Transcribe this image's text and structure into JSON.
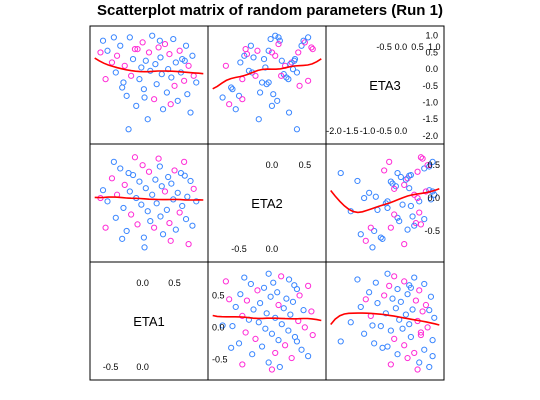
{
  "chart_data": {
    "type": "scatter",
    "title": "Scatterplot matrix of random parameters (Run 1)",
    "variables": [
      "ETA1",
      "ETA2",
      "ETA3"
    ],
    "diagonal_order_bottom_to_top": [
      "ETA1",
      "ETA2",
      "ETA3"
    ],
    "point_colors": {
      "group_a": "#3a86ff",
      "group_b": "#ff2bd6"
    },
    "smooth_color": "#ff0000",
    "axes": {
      "ETA1": {
        "range": [
          -0.75,
          0.95
        ],
        "ticks": [
          -0.5,
          0.0,
          0.5
        ],
        "tick_labels": [
          "-0.5",
          "0.0",
          "0.5"
        ]
      },
      "ETA2": {
        "range": [
          -0.9,
          0.75
        ],
        "ticks": [
          -0.5,
          0.0,
          0.5
        ],
        "tick_labels": [
          "-0.5",
          "0.0",
          "0.5"
        ]
      },
      "ETA3": {
        "range": [
          -2.1,
          1.15
        ],
        "ticks": [
          -2.0,
          -1.5,
          -1.0,
          -0.5,
          0.0,
          0.5,
          1.0
        ],
        "tick_labels": [
          "-2.0",
          "-1.5",
          "-1.0",
          "-0.5",
          "0.0",
          "0.5",
          "1.0"
        ]
      }
    },
    "points": [
      {
        "ETA1": -0.62,
        "ETA2": 0.12,
        "ETA3": 0.85,
        "g": "a"
      },
      {
        "ETA1": -0.55,
        "ETA2": -0.05,
        "ETA3": 0.55,
        "g": "a"
      },
      {
        "ETA1": -0.48,
        "ETA2": 0.3,
        "ETA3": 0.2,
        "g": "b"
      },
      {
        "ETA1": -0.42,
        "ETA2": -0.3,
        "ETA3": -0.1,
        "g": "a"
      },
      {
        "ETA1": -0.4,
        "ETA2": 0.05,
        "ETA3": 0.4,
        "g": "b"
      },
      {
        "ETA1": -0.35,
        "ETA2": 0.45,
        "ETA3": 0.7,
        "g": "a"
      },
      {
        "ETA1": -0.3,
        "ETA2": -0.15,
        "ETA3": -0.4,
        "g": "a"
      },
      {
        "ETA1": -0.28,
        "ETA2": 0.2,
        "ETA3": 0.1,
        "g": "b"
      },
      {
        "ETA1": -0.25,
        "ETA2": -0.5,
        "ETA3": -0.8,
        "g": "a"
      },
      {
        "ETA1": -0.2,
        "ETA2": 0.1,
        "ETA3": 0.95,
        "g": "a"
      },
      {
        "ETA1": -0.18,
        "ETA2": -0.25,
        "ETA3": -0.2,
        "g": "b"
      },
      {
        "ETA1": -0.15,
        "ETA2": 0.35,
        "ETA3": 0.3,
        "g": "a"
      },
      {
        "ETA1": -0.1,
        "ETA2": 0.0,
        "ETA3": -1.1,
        "g": "a"
      },
      {
        "ETA1": -0.08,
        "ETA2": -0.4,
        "ETA3": 0.6,
        "g": "b"
      },
      {
        "ETA1": -0.05,
        "ETA2": 0.25,
        "ETA3": -0.3,
        "g": "a"
      },
      {
        "ETA1": -0.02,
        "ETA2": -0.1,
        "ETA3": 0.05,
        "g": "a"
      },
      {
        "ETA1": 0.0,
        "ETA2": 0.5,
        "ETA3": 0.8,
        "g": "b"
      },
      {
        "ETA1": 0.02,
        "ETA2": -0.6,
        "ETA3": -0.6,
        "g": "a"
      },
      {
        "ETA1": 0.05,
        "ETA2": 0.15,
        "ETA3": 0.25,
        "g": "a"
      },
      {
        "ETA1": 0.08,
        "ETA2": -0.2,
        "ETA3": -1.5,
        "g": "a"
      },
      {
        "ETA1": 0.1,
        "ETA2": 0.4,
        "ETA3": 0.5,
        "g": "b"
      },
      {
        "ETA1": 0.12,
        "ETA2": -0.35,
        "ETA3": -0.05,
        "g": "a"
      },
      {
        "ETA1": 0.15,
        "ETA2": 0.05,
        "ETA3": 1.0,
        "g": "a"
      },
      {
        "ETA1": 0.18,
        "ETA2": -0.45,
        "ETA3": -0.9,
        "g": "b"
      },
      {
        "ETA1": 0.2,
        "ETA2": 0.28,
        "ETA3": 0.15,
        "g": "a"
      },
      {
        "ETA1": 0.22,
        "ETA2": -0.08,
        "ETA3": -0.45,
        "g": "a"
      },
      {
        "ETA1": 0.25,
        "ETA2": 0.6,
        "ETA3": 0.65,
        "g": "b"
      },
      {
        "ETA1": 0.28,
        "ETA2": -0.28,
        "ETA3": 0.35,
        "g": "a"
      },
      {
        "ETA1": 0.3,
        "ETA2": 0.18,
        "ETA3": -0.15,
        "g": "a"
      },
      {
        "ETA1": 0.32,
        "ETA2": -0.55,
        "ETA3": -1.2,
        "g": "a"
      },
      {
        "ETA1": 0.35,
        "ETA2": 0.1,
        "ETA3": 0.75,
        "g": "b"
      },
      {
        "ETA1": 0.38,
        "ETA2": -0.18,
        "ETA3": -0.7,
        "g": "a"
      },
      {
        "ETA1": 0.4,
        "ETA2": 0.32,
        "ETA3": 0.0,
        "g": "a"
      },
      {
        "ETA1": 0.42,
        "ETA2": -0.38,
        "ETA3": 0.45,
        "g": "b"
      },
      {
        "ETA1": 0.45,
        "ETA2": 0.22,
        "ETA3": -0.25,
        "g": "a"
      },
      {
        "ETA1": 0.48,
        "ETA2": -0.02,
        "ETA3": 0.9,
        "g": "a"
      },
      {
        "ETA1": 0.5,
        "ETA2": 0.42,
        "ETA3": -0.5,
        "g": "b"
      },
      {
        "ETA1": 0.52,
        "ETA2": -0.48,
        "ETA3": 0.2,
        "g": "a"
      },
      {
        "ETA1": 0.55,
        "ETA2": 0.08,
        "ETA3": -0.95,
        "g": "a"
      },
      {
        "ETA1": 0.58,
        "ETA2": -0.22,
        "ETA3": 0.55,
        "g": "b"
      },
      {
        "ETA1": 0.6,
        "ETA2": 0.38,
        "ETA3": -0.1,
        "g": "a"
      },
      {
        "ETA1": 0.62,
        "ETA2": -0.12,
        "ETA3": 0.3,
        "g": "a"
      },
      {
        "ETA1": 0.65,
        "ETA2": 0.55,
        "ETA3": -0.35,
        "g": "b"
      },
      {
        "ETA1": 0.68,
        "ETA2": -0.32,
        "ETA3": 0.7,
        "g": "a"
      },
      {
        "ETA1": 0.7,
        "ETA2": 0.02,
        "ETA3": -0.75,
        "g": "a"
      },
      {
        "ETA1": 0.72,
        "ETA2": -0.7,
        "ETA3": 0.1,
        "g": "b"
      },
      {
        "ETA1": 0.75,
        "ETA2": 0.26,
        "ETA3": -1.3,
        "g": "a"
      },
      {
        "ETA1": 0.78,
        "ETA2": -0.42,
        "ETA3": 0.4,
        "g": "a"
      },
      {
        "ETA1": 0.8,
        "ETA2": 0.14,
        "ETA3": -0.2,
        "g": "b"
      },
      {
        "ETA1": -0.58,
        "ETA2": -0.45,
        "ETA3": -0.3,
        "g": "b"
      },
      {
        "ETA1": -0.45,
        "ETA2": 0.55,
        "ETA3": 0.95,
        "g": "a"
      },
      {
        "ETA1": -0.32,
        "ETA2": -0.62,
        "ETA3": -0.55,
        "g": "a"
      },
      {
        "ETA1": -0.12,
        "ETA2": 0.62,
        "ETA3": 0.6,
        "g": "b"
      },
      {
        "ETA1": 0.03,
        "ETA2": -0.75,
        "ETA3": -0.85,
        "g": "a"
      },
      {
        "ETA1": 0.27,
        "ETA2": 0.48,
        "ETA3": 0.85,
        "g": "a"
      },
      {
        "ETA1": 0.44,
        "ETA2": -0.65,
        "ETA3": -1.05,
        "g": "b"
      },
      {
        "ETA1": 0.66,
        "ETA2": 0.34,
        "ETA3": 0.25,
        "g": "a"
      },
      {
        "ETA1": -0.66,
        "ETA2": 0.0,
        "ETA3": 0.5,
        "g": "b"
      },
      {
        "ETA1": 0.84,
        "ETA2": -0.05,
        "ETA3": -0.4,
        "g": "a"
      },
      {
        "ETA1": -0.22,
        "ETA2": 0.38,
        "ETA3": -1.8,
        "g": "a"
      }
    ]
  }
}
